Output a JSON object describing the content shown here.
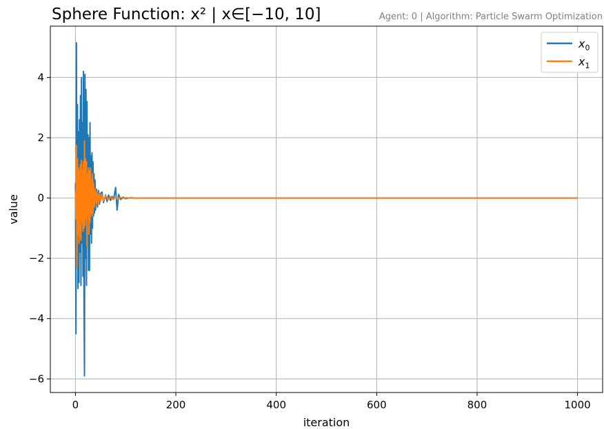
{
  "chart_data": {
    "type": "line",
    "title": "Sphere Function: x² | x∈[−10, 10]",
    "subtitle": "Agent: 0 | Algorithm: Particle Swarm Optimization",
    "xlabel": "iteration",
    "ylabel": "value",
    "xlim": [
      -50,
      1050
    ],
    "ylim": [
      -6.45,
      5.7
    ],
    "xticks": [
      0,
      200,
      400,
      600,
      800,
      1000
    ],
    "xtick_labels": [
      "0",
      "200",
      "400",
      "600",
      "800",
      "1000"
    ],
    "yticks": [
      -6,
      -4,
      -2,
      0,
      2,
      4
    ],
    "ytick_labels": [
      "−6",
      "−4",
      "−2",
      "0",
      "2",
      "4"
    ],
    "grid": true,
    "legend_position": "top-right",
    "series": [
      {
        "name": "x0",
        "color": "#1f77b4",
        "x": [
          0,
          1,
          2,
          3,
          4,
          5,
          6,
          7,
          8,
          9,
          10,
          11,
          12,
          13,
          14,
          15,
          16,
          17,
          18,
          19,
          20,
          21,
          22,
          23,
          24,
          25,
          26,
          27,
          28,
          29,
          30,
          31,
          32,
          33,
          34,
          35,
          36,
          37,
          38,
          39,
          40,
          42,
          44,
          46,
          48,
          50,
          53,
          56,
          60,
          63,
          66,
          70,
          73,
          76,
          80,
          83,
          86,
          90,
          95,
          100,
          110,
          120,
          150,
          200,
          300,
          400,
          500,
          600,
          700,
          800,
          900,
          1000
        ],
        "y": [
          0.5,
          -4.5,
          5.15,
          -2.2,
          3.1,
          -3.0,
          2.2,
          -2.8,
          2.6,
          -1.8,
          3.4,
          -2.9,
          4.0,
          -1.5,
          2.5,
          -2.6,
          4.2,
          -3.2,
          -5.9,
          4.1,
          -2.0,
          3.6,
          -2.9,
          3.2,
          -1.0,
          2.1,
          -2.4,
          2.0,
          -2.4,
          2.5,
          -1.2,
          1.4,
          -1.5,
          1.5,
          -1.0,
          1.2,
          -0.6,
          0.8,
          -0.5,
          0.6,
          -0.4,
          0.3,
          -0.3,
          0.25,
          -0.2,
          0.15,
          0.2,
          -0.15,
          0.1,
          -0.12,
          0.1,
          -0.08,
          0.05,
          -0.05,
          0.35,
          -0.4,
          0.12,
          -0.05,
          0.03,
          -0.02,
          0.01,
          0,
          0,
          0,
          0,
          0,
          0,
          0,
          0,
          0,
          0,
          0
        ]
      },
      {
        "name": "x1",
        "color": "#ff7f0e",
        "x": [
          0,
          1,
          2,
          3,
          4,
          5,
          6,
          7,
          8,
          9,
          10,
          11,
          12,
          13,
          14,
          15,
          16,
          17,
          18,
          19,
          20,
          21,
          22,
          23,
          24,
          25,
          26,
          27,
          28,
          29,
          30,
          31,
          32,
          33,
          34,
          35,
          36,
          38,
          40,
          42,
          44,
          46,
          48,
          50,
          53,
          56,
          60,
          65,
          70,
          75,
          80,
          85,
          90,
          95,
          100,
          110,
          120,
          150,
          200,
          300,
          400,
          500,
          600,
          700,
          800,
          900,
          1000
        ],
        "y": [
          0.2,
          -0.7,
          1.75,
          -2.3,
          1.3,
          -1.2,
          1.0,
          -1.5,
          0.9,
          -1.3,
          1.1,
          -1.4,
          1.25,
          -0.8,
          0.9,
          -1.1,
          1.2,
          -1.0,
          1.9,
          -0.9,
          1.3,
          -0.7,
          1.2,
          -1.6,
          0.8,
          -0.6,
          1.0,
          -1.2,
          0.9,
          -0.8,
          1.0,
          -0.5,
          0.6,
          -0.6,
          0.8,
          -0.5,
          0.5,
          -0.3,
          0.3,
          -0.2,
          0.2,
          -0.2,
          0.15,
          -0.1,
          0.12,
          -0.1,
          0.08,
          -0.05,
          0.05,
          -0.04,
          0.03,
          -0.02,
          0.02,
          -0.01,
          0.01,
          0,
          0,
          0,
          0,
          0,
          0,
          0,
          0,
          0,
          0,
          0,
          0
        ]
      }
    ]
  }
}
